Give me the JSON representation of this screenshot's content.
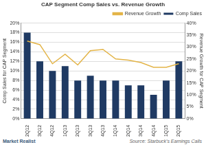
{
  "chart_data": {
    "type": "bar",
    "title": "CAP Segment Comp Sales vs. Revenue Growth",
    "categories": [
      "2Q12",
      "3Q12",
      "4Q12",
      "1Q13",
      "2Q13",
      "3Q13",
      "4Q13",
      "1Q14",
      "2Q14",
      "3Q14",
      "4Q14",
      "1Q15",
      "2Q15"
    ],
    "series": [
      {
        "name": "Comp Sales",
        "color": "#1f3a63",
        "values": [
          18,
          12,
          10,
          11,
          8,
          9,
          8,
          8,
          7,
          7,
          5,
          8,
          12
        ]
      },
      {
        "name": "Revenue Growth",
        "type": "line",
        "marker": "none",
        "color": "#e3b447",
        "axis": "y2",
        "values": [
          32.5,
          31,
          23,
          27,
          22.5,
          28.5,
          29,
          25,
          24.5,
          23.5,
          21.5,
          21.5,
          23
        ]
      }
    ],
    "y_label": "Comp Sales for CAP Segment",
    "y2_label": "Revenue Growth for CAP Segment",
    "ylim": [
      0,
      20
    ],
    "yticks": [
      {
        "value": 0,
        "label": "0%"
      },
      {
        "value": 2,
        "label": "2%"
      },
      {
        "value": 4,
        "label": "4%"
      },
      {
        "value": 6,
        "label": "6%"
      },
      {
        "value": 8,
        "label": "8%"
      },
      {
        "value": 10,
        "label": "10%"
      },
      {
        "value": 12,
        "label": "12%"
      },
      {
        "value": 14,
        "label": "14%"
      },
      {
        "value": 16,
        "label": "16%"
      },
      {
        "value": 18,
        "label": "18%"
      },
      {
        "value": 20,
        "label": "20%"
      }
    ],
    "y2lim": [
      0,
      40
    ],
    "y2ticks": [
      {
        "value": 0,
        "label": "0%"
      },
      {
        "value": 5,
        "label": "5%"
      },
      {
        "value": 10,
        "label": "10%"
      },
      {
        "value": 15,
        "label": "15%"
      },
      {
        "value": 20,
        "label": "20%"
      },
      {
        "value": 25,
        "label": "25%"
      },
      {
        "value": 30,
        "label": "30%"
      },
      {
        "value": 35,
        "label": "35%"
      },
      {
        "value": 40,
        "label": "40%"
      }
    ],
    "grid": true,
    "legend": "top-right",
    "annotations": [
      "Market Realist",
      "Source: Starbuck's Earnings Calls"
    ]
  }
}
